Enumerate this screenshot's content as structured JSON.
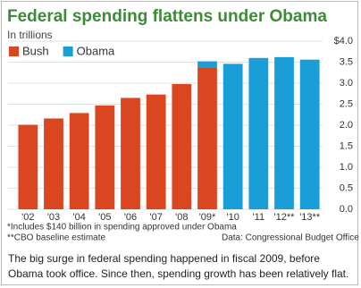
{
  "chart_data": {
    "type": "bar",
    "stacked": true,
    "title": "Federal spending flattens under Obama",
    "subtitle": "In trillions",
    "categories": [
      "'02",
      "'03",
      "'04",
      "'05",
      "'06",
      "'07",
      "'08",
      "'09*",
      "'10",
      "'11",
      "'12**",
      "'13**"
    ],
    "series": [
      {
        "name": "Bush",
        "color": "#d9461f",
        "values": [
          2.01,
          2.16,
          2.29,
          2.47,
          2.65,
          2.73,
          2.98,
          3.38,
          null,
          null,
          null,
          null
        ]
      },
      {
        "name": "Obama",
        "color": "#1a9ed8",
        "values": [
          null,
          null,
          null,
          null,
          null,
          null,
          null,
          0.14,
          3.46,
          3.6,
          3.62,
          3.56
        ]
      }
    ],
    "ylim": [
      0,
      4
    ],
    "yticks": [
      {
        "value": 0,
        "label": "0.0"
      },
      0.5,
      {
        "value": 1,
        "label": "1.0"
      },
      1.5,
      {
        "value": 2,
        "label": "2.0"
      },
      2.5,
      {
        "value": 3,
        "label": "3.0"
      },
      3.5,
      {
        "value": 4,
        "label": "$4.0"
      }
    ],
    "grid": true,
    "legend": "top-left",
    "notes": [
      "*Includes $140 billion in spending approved under Obama",
      "**CBO baseline estimate"
    ],
    "source": "Data: Congressional Budget Office"
  },
  "caption": "The big surge in federal spending happened in fiscal 2009, before Obama took office. Since then, spending growth has been relatively flat."
}
